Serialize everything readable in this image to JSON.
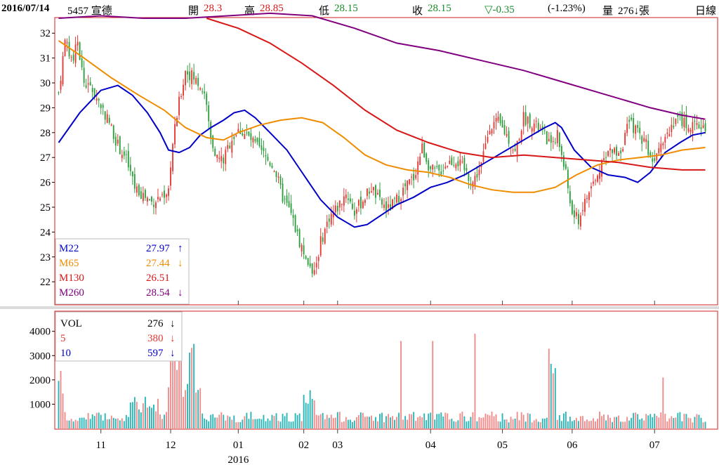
{
  "header": {
    "date": "2016/07/14",
    "stock": "5457 宣德",
    "open_label": "開",
    "open": "28.3",
    "high_label": "高",
    "high": "28.85",
    "low_label": "低",
    "low": "28.15",
    "close_label": "收",
    "close": "28.15",
    "change": "▽-0.35",
    "change_pct": "(-1.23%)",
    "volume_label": "量",
    "volume": "276↓張",
    "period": "日線"
  },
  "colors": {
    "up": "#e53935",
    "down": "#2e9e3e",
    "vol_up": "#f28a8a",
    "vol_down": "#29b5b5",
    "m22": "#0000c8",
    "m65": "#f08c00",
    "m130": "#d81818",
    "m260": "#800080",
    "frame": "#d02020"
  },
  "chart_data": [
    {
      "type": "candlestick",
      "panel": "price",
      "y_ticks": [
        22,
        23,
        24,
        25,
        26,
        27,
        28,
        29,
        30,
        31,
        32
      ],
      "ylim": [
        21.1,
        32.6
      ],
      "x_ticks": [
        "11",
        "12",
        "01",
        "02",
        "03",
        "04",
        "05",
        "06",
        "07"
      ],
      "year_label": "2016",
      "legend": [
        {
          "name": "M22",
          "value": "27.97",
          "arrow": "↑",
          "color_key": "m22"
        },
        {
          "name": "M65",
          "value": "27.44",
          "arrow": "↓",
          "color_key": "m65"
        },
        {
          "name": "M130",
          "value": "26.51",
          "arrow": "",
          "color_key": "m130"
        },
        {
          "name": "M260",
          "value": "28.54",
          "arrow": "↓",
          "color_key": "m260"
        }
      ],
      "ma_lines": {
        "m22": [
          [
            0,
            27.6
          ],
          [
            10,
            28.8
          ],
          [
            20,
            29.7
          ],
          [
            28,
            29.9
          ],
          [
            35,
            29.5
          ],
          [
            42,
            28.8
          ],
          [
            48,
            28.0
          ],
          [
            52,
            27.3
          ],
          [
            57,
            27.2
          ],
          [
            62,
            27.4
          ],
          [
            67,
            27.9
          ],
          [
            72,
            28.2
          ],
          [
            78,
            28.5
          ],
          [
            83,
            28.8
          ],
          [
            88,
            28.9
          ],
          [
            93,
            28.6
          ],
          [
            100,
            28.0
          ],
          [
            108,
            27.3
          ],
          [
            116,
            26.3
          ],
          [
            124,
            25.3
          ],
          [
            132,
            24.6
          ],
          [
            140,
            24.2
          ],
          [
            146,
            24.3
          ],
          [
            153,
            24.7
          ],
          [
            160,
            25.1
          ],
          [
            168,
            25.4
          ],
          [
            176,
            25.8
          ],
          [
            184,
            26.0
          ],
          [
            192,
            26.3
          ],
          [
            200,
            26.7
          ],
          [
            208,
            27.1
          ],
          [
            216,
            27.5
          ],
          [
            224,
            27.9
          ],
          [
            230,
            28.2
          ],
          [
            235,
            28.4
          ],
          [
            238,
            28.2
          ],
          [
            244,
            27.3
          ],
          [
            252,
            26.6
          ],
          [
            260,
            26.3
          ],
          [
            268,
            26.2
          ],
          [
            274,
            26.0
          ],
          [
            280,
            26.4
          ],
          [
            287,
            27.2
          ],
          [
            294,
            27.6
          ],
          [
            300,
            27.9
          ],
          [
            306,
            28.0
          ]
        ],
        "m65": [
          [
            0,
            31.7
          ],
          [
            12,
            31.0
          ],
          [
            25,
            30.2
          ],
          [
            38,
            29.5
          ],
          [
            50,
            28.9
          ],
          [
            60,
            28.2
          ],
          [
            70,
            27.8
          ],
          [
            78,
            27.7
          ],
          [
            85,
            28.0
          ],
          [
            95,
            28.3
          ],
          [
            105,
            28.5
          ],
          [
            115,
            28.6
          ],
          [
            125,
            28.4
          ],
          [
            135,
            27.8
          ],
          [
            145,
            27.1
          ],
          [
            155,
            26.7
          ],
          [
            165,
            26.5
          ],
          [
            175,
            26.4
          ],
          [
            185,
            26.2
          ],
          [
            195,
            25.9
          ],
          [
            205,
            25.7
          ],
          [
            215,
            25.6
          ],
          [
            225,
            25.6
          ],
          [
            235,
            25.8
          ],
          [
            245,
            26.3
          ],
          [
            255,
            26.7
          ],
          [
            265,
            26.9
          ],
          [
            275,
            27.0
          ],
          [
            285,
            27.1
          ],
          [
            295,
            27.3
          ],
          [
            306,
            27.4
          ]
        ],
        "m130": [
          [
            70,
            32.6
          ],
          [
            85,
            32.2
          ],
          [
            100,
            31.6
          ],
          [
            115,
            30.8
          ],
          [
            130,
            29.9
          ],
          [
            145,
            28.9
          ],
          [
            160,
            28.1
          ],
          [
            175,
            27.6
          ],
          [
            190,
            27.2
          ],
          [
            205,
            27.0
          ],
          [
            220,
            27.1
          ],
          [
            235,
            27.0
          ],
          [
            250,
            26.9
          ],
          [
            265,
            26.8
          ],
          [
            280,
            26.6
          ],
          [
            295,
            26.5
          ],
          [
            306,
            26.5
          ]
        ],
        "m260": [
          [
            0,
            32.6
          ],
          [
            20,
            32.7
          ],
          [
            40,
            32.6
          ],
          [
            60,
            32.6
          ],
          [
            80,
            32.7
          ],
          [
            100,
            32.8
          ],
          [
            120,
            32.7
          ],
          [
            140,
            32.2
          ],
          [
            160,
            31.6
          ],
          [
            180,
            31.3
          ],
          [
            200,
            30.9
          ],
          [
            220,
            30.5
          ],
          [
            240,
            30.0
          ],
          [
            260,
            29.5
          ],
          [
            280,
            29.0
          ],
          [
            295,
            28.7
          ],
          [
            306,
            28.54
          ]
        ]
      }
    },
    {
      "type": "bar",
      "panel": "volume",
      "y_ticks": [
        1000,
        2000,
        3000,
        4000
      ],
      "ylim": [
        0,
        4800
      ],
      "legend": [
        {
          "name": "VOL",
          "value": "276",
          "arrow": "↓",
          "color_key": "text"
        },
        {
          "name": "5",
          "value": "380",
          "arrow": "↓",
          "color_key": "up"
        },
        {
          "name": "10",
          "value": "597",
          "arrow": "↓",
          "color_key": "m22"
        }
      ]
    }
  ]
}
